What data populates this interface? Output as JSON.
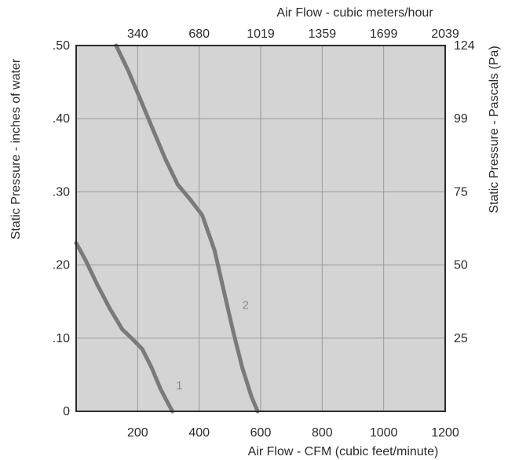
{
  "chart_data": {
    "type": "line",
    "colors": {
      "plot_bg": "#d4d4d4",
      "grid": "#9a9a9a",
      "curve": "#7a7a7a",
      "frame": "#2b2b2b"
    },
    "grid": true,
    "x_bottom": {
      "label": "Air Flow - CFM (cubic feet/minute)",
      "range": [
        0,
        1200
      ],
      "ticks": [
        200,
        400,
        600,
        800,
        1000,
        1200
      ],
      "tick_labels": [
        "200",
        "400",
        "600",
        "800",
        "1000",
        "1200"
      ]
    },
    "x_top": {
      "label": "Air Flow - cubic meters/hour",
      "tick_labels": [
        "340",
        "680",
        "1019",
        "1359",
        "1699",
        "2039"
      ]
    },
    "y_left": {
      "label": "Static Pressure - inches of water",
      "range": [
        0,
        0.5
      ],
      "ticks": [
        0,
        0.1,
        0.2,
        0.3,
        0.4,
        0.5
      ],
      "tick_labels": [
        "0",
        ".10",
        ".20",
        ".30",
        ".40",
        ".50"
      ]
    },
    "y_right": {
      "label": "Static Pressure - Pascals (Pa)",
      "ticks": [
        0.1,
        0.2,
        0.3,
        0.4,
        0.5
      ],
      "tick_labels": [
        "25",
        "50",
        "75",
        "99",
        "124"
      ]
    },
    "series": [
      {
        "name": "1",
        "points": [
          [
            0,
            0.23
          ],
          [
            30,
            0.207
          ],
          [
            70,
            0.172
          ],
          [
            110,
            0.14
          ],
          [
            150,
            0.112
          ],
          [
            185,
            0.098
          ],
          [
            215,
            0.085
          ],
          [
            245,
            0.06
          ],
          [
            275,
            0.03
          ],
          [
            300,
            0.01
          ],
          [
            313,
            0
          ]
        ]
      },
      {
        "name": "2",
        "points": [
          [
            130,
            0.5
          ],
          [
            170,
            0.465
          ],
          [
            210,
            0.425
          ],
          [
            250,
            0.385
          ],
          [
            290,
            0.345
          ],
          [
            330,
            0.31
          ],
          [
            370,
            0.29
          ],
          [
            410,
            0.268
          ],
          [
            450,
            0.22
          ],
          [
            480,
            0.165
          ],
          [
            510,
            0.11
          ],
          [
            540,
            0.06
          ],
          [
            570,
            0.02
          ],
          [
            590,
            0
          ]
        ]
      }
    ]
  }
}
